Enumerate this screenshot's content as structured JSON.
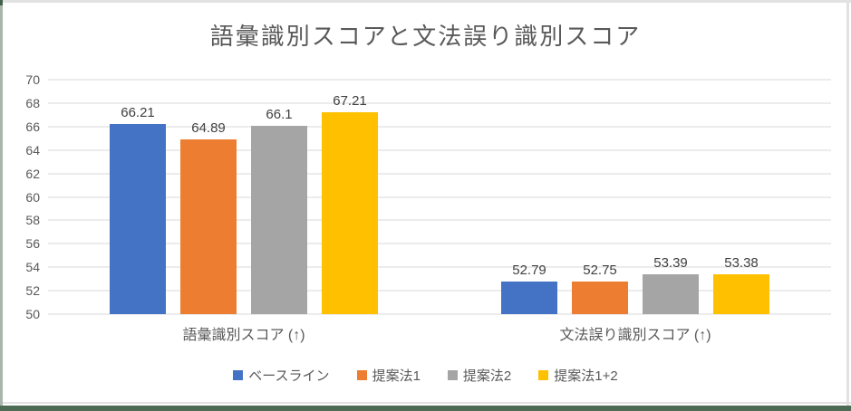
{
  "window": {
    "chrome_bottom_green": "#4e6b56",
    "chrome_left_green": "#a9b5ab",
    "chrome_gray": "#e2e2e2"
  },
  "chart_data": {
    "type": "bar",
    "title": "語彙識別スコアと文法誤り識別スコア",
    "categories": [
      "語彙識別スコア (↑)",
      "文法誤り識別スコア (↑)"
    ],
    "series": [
      {
        "name": "ベースライン",
        "color": "#4472C4",
        "values": [
          66.21,
          52.79
        ]
      },
      {
        "name": "提案法1",
        "color": "#ED7D31",
        "values": [
          64.89,
          52.75
        ]
      },
      {
        "name": "提案法2",
        "color": "#A5A5A5",
        "values": [
          66.1,
          53.39
        ]
      },
      {
        "name": "提案法1+2",
        "color": "#FFC000",
        "values": [
          67.21,
          53.38
        ]
      }
    ],
    "ylim": [
      50,
      70
    ],
    "ytick_step": 2,
    "yticks": [
      50,
      52,
      54,
      56,
      58,
      60,
      62,
      64,
      66,
      68,
      70
    ],
    "grid": true,
    "gridline_color": "#D9D9D9",
    "data_labels": true,
    "legend_position": "bottom",
    "title_color": "#595959",
    "axis_text_color": "#595959",
    "data_label_color": "#404040"
  }
}
